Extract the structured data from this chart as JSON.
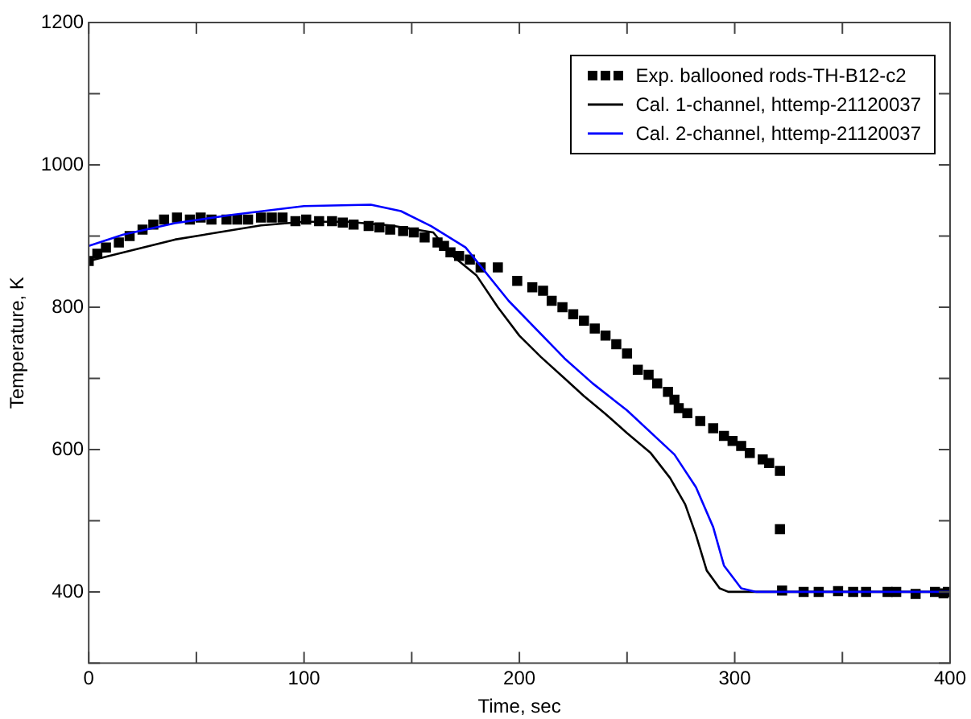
{
  "chart_data": {
    "type": "line",
    "xlabel": "Time, sec",
    "ylabel": "Temperature, K",
    "xlim": [
      0,
      400
    ],
    "xticks": [
      0,
      {
        "value": 50,
        "label": null
      },
      100,
      {
        "value": 150,
        "label": null
      },
      200,
      {
        "value": 250,
        "label": null
      },
      300,
      {
        "value": 350,
        "label": null
      },
      400
    ],
    "ylim": [
      300,
      1200
    ],
    "yticks": [
      {
        "value": 300,
        "label": null
      },
      400,
      {
        "value": 500,
        "label": null
      },
      600,
      {
        "value": 700,
        "label": null
      },
      800,
      {
        "value": 900,
        "label": null
      },
      1000,
      {
        "value": 1100,
        "label": null
      },
      1200
    ],
    "grid": false,
    "legend": "top right",
    "series": [
      {
        "name": "Exp. ballooned rods-TH-B12-c2",
        "type": "scatter",
        "marker": "square",
        "color": "#000000",
        "x": [
          0,
          4,
          8,
          14,
          19,
          25,
          30,
          35,
          41,
          47,
          52,
          57,
          64,
          69,
          74,
          80,
          85,
          90,
          96,
          101,
          107,
          113,
          118,
          123,
          130,
          135,
          140,
          146,
          151,
          156,
          162,
          165,
          168,
          172,
          177,
          182,
          190,
          199,
          206,
          211,
          215,
          220,
          225,
          230,
          235,
          240,
          245,
          250,
          255,
          260,
          264,
          269,
          272,
          274,
          278,
          284,
          290,
          295,
          299,
          303,
          307,
          313,
          316,
          321,
          321,
          322,
          332,
          339,
          348,
          355,
          361,
          371,
          375,
          384,
          393,
          397,
          399
        ],
        "values": [
          865,
          875,
          884,
          891,
          900,
          909,
          916,
          923,
          926,
          923,
          926,
          923,
          923,
          923,
          923,
          926,
          926,
          926,
          921,
          923,
          921,
          921,
          919,
          916,
          914,
          912,
          909,
          907,
          905,
          898,
          891,
          886,
          877,
          872,
          867,
          856,
          856,
          837,
          828,
          823,
          809,
          800,
          790,
          781,
          770,
          760,
          748,
          735,
          712,
          705,
          693,
          681,
          670,
          658,
          651,
          640,
          630,
          619,
          612,
          605,
          595,
          586,
          581,
          570,
          488,
          402,
          400,
          400,
          401,
          400,
          400,
          400,
          400,
          397,
          400,
          398,
          400
        ]
      },
      {
        "name": "Cal. 1-channel, httemp-21120037",
        "marker": "none",
        "color": "#000000",
        "x": [
          0,
          20,
          40,
          60,
          80,
          100,
          120,
          140,
          160,
          169,
          180,
          190,
          200,
          210,
          221,
          230,
          240,
          250,
          261,
          270,
          277,
          282,
          287,
          293,
          297,
          300,
          400
        ],
        "values": [
          865,
          880,
          895,
          905,
          915,
          920,
          920,
          915,
          905,
          872,
          845,
          800,
          760,
          730,
          700,
          675,
          650,
          623,
          595,
          560,
          523,
          480,
          430,
          405,
          400,
          400,
          400
        ]
      },
      {
        "name": "Cal. 2-channel, httemp-21120037",
        "marker": "none",
        "color": "#0000ff",
        "x": [
          0,
          16,
          40,
          67,
          100,
          131,
          145,
          159,
          175,
          195,
          221,
          234,
          250,
          272,
          282,
          290,
          295,
          303,
          310,
          400
        ],
        "values": [
          886,
          902,
          918,
          930,
          942,
          944,
          935,
          914,
          884,
          809,
          728,
          693,
          655,
          593,
          547,
          491,
          437,
          405,
          400,
          400
        ]
      }
    ]
  }
}
